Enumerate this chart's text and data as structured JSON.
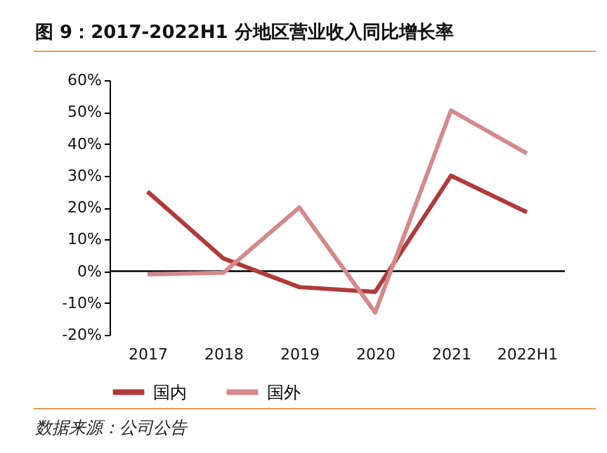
{
  "chart_data": {
    "type": "line",
    "title": "图 9：2017-2022H1 分地区营业收入同比增长率",
    "categories": [
      "2017",
      "2018",
      "2019",
      "2020",
      "2021",
      "2022H1"
    ],
    "series": [
      {
        "name": "国内",
        "color": "#b03a3a",
        "values": [
          25,
          4,
          -5,
          -6.5,
          30,
          18.5
        ]
      },
      {
        "name": "国外",
        "color": "#d48a8a",
        "values": [
          -1,
          -0.5,
          20,
          -13,
          50.5,
          37
        ]
      }
    ],
    "ylim": [
      -20,
      60
    ],
    "yticks": [
      {
        "value": -20,
        "label": "-20%"
      },
      {
        "value": -10,
        "label": "-10%"
      },
      {
        "value": 0,
        "label": "0%"
      },
      {
        "value": 10,
        "label": "10%"
      },
      {
        "value": 20,
        "label": "20%"
      },
      {
        "value": 30,
        "label": "30%"
      },
      {
        "value": 40,
        "label": "40%"
      },
      {
        "value": 50,
        "label": "50%"
      },
      {
        "value": 60,
        "label": "60%"
      }
    ],
    "ref_lines": [
      {
        "axis": "y",
        "value": 0,
        "color": "#000000",
        "line_style": "solid"
      }
    ],
    "grid": false,
    "legend": "bottom",
    "marker": "none",
    "line_style": "solid",
    "annotations": [
      "数据来源：公司公告"
    ]
  }
}
